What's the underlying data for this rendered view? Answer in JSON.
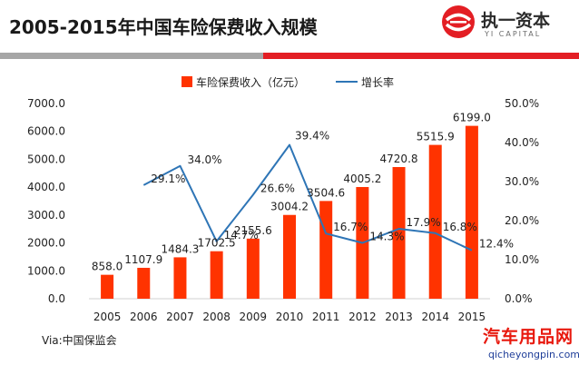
{
  "header": {
    "title": "2005-2015年中国车险保费收入规模",
    "logo_name": "执一资本",
    "logo_tagline": "YI CAPITAL",
    "logo_icon": "yi-capital-logo-icon"
  },
  "colors": {
    "bar": "#ff3300",
    "line": "#2e75b6",
    "accent_red": "#e31e24",
    "rule_gray": "#a6a6a6",
    "text": "#222222",
    "watermark_red": "#e8190e",
    "watermark_blue": "#1f3e99"
  },
  "chart_data": {
    "type": "bar",
    "categories": [
      "2005",
      "2006",
      "2007",
      "2008",
      "2009",
      "2010",
      "2011",
      "2012",
      "2013",
      "2014",
      "2015"
    ],
    "series": [
      {
        "name": "车险保费收入（亿元）",
        "type": "bar",
        "axis": "left",
        "values": [
          858.0,
          1107.9,
          1484.3,
          1702.5,
          2155.6,
          3004.2,
          3504.6,
          4005.2,
          4720.8,
          5515.9,
          6199.0
        ],
        "labels": [
          "858.0",
          "1107.9",
          "1484.3",
          "1702.5",
          "2155.6",
          "3004.2",
          "3504.6",
          "4005.2",
          "4720.8",
          "5515.9",
          "6199.0"
        ]
      },
      {
        "name": "增长率",
        "type": "line",
        "axis": "right",
        "values": [
          null,
          29.1,
          34.0,
          14.7,
          26.6,
          39.4,
          16.7,
          14.3,
          17.9,
          16.8,
          12.4
        ],
        "labels": [
          null,
          "29.1%",
          "34.0%",
          "14.7%",
          "26.6%",
          "39.4%",
          "16.7%",
          "14.3%",
          "17.9%",
          "16.8%",
          "12.4%"
        ]
      }
    ],
    "y_left": {
      "min": 0,
      "max": 7000,
      "ticks": [
        0,
        1000,
        2000,
        3000,
        4000,
        5000,
        6000,
        7000
      ],
      "tick_labels": [
        "0.0",
        "1000.0",
        "2000.0",
        "3000.0",
        "4000.0",
        "5000.0",
        "6000.0",
        "7000.0"
      ]
    },
    "y_right": {
      "min": 0,
      "max": 50,
      "ticks": [
        0,
        10,
        20,
        30,
        40,
        50
      ],
      "tick_labels": [
        "0.0%",
        "10.0%",
        "20.0%",
        "30.0%",
        "40.0%",
        "50.0%"
      ]
    },
    "grid": false,
    "legend_position": "top"
  },
  "footer": {
    "source": "Via:中国保监会",
    "watermark_name": "汽车用品网",
    "watermark_url": "qicheyongpin.com"
  }
}
